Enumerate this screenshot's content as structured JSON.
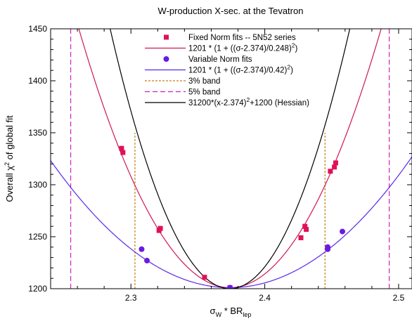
{
  "chart_data": {
    "type": "scatter",
    "title": "W-production X-sec. at the Tevatron",
    "xlabel": {
      "main": "σ",
      "sub1": "W",
      "mid": " * BR",
      "sub2": "lep"
    },
    "ylabel": {
      "pre": "Overall χ",
      "sup": "2",
      "post": " of global fit"
    },
    "xlim": [
      2.24,
      2.51
    ],
    "ylim": [
      1200,
      1450
    ],
    "xticks": [
      2.3,
      2.4,
      2.5
    ],
    "xtick_labels": [
      "2.3",
      "2.4",
      "2.5"
    ],
    "yticks": [
      1200,
      1250,
      1300,
      1350,
      1400,
      1450
    ],
    "ytick_labels": [
      "1200",
      "1250",
      "1300",
      "1350",
      "1400",
      "1450"
    ],
    "legend_position": "top-right",
    "series": [
      {
        "name": "Fixed Norm fits -- 5N52 series",
        "kind": "points",
        "marker": "square",
        "color": "#e0105a",
        "points": [
          [
            2.293,
            1335
          ],
          [
            2.294,
            1331
          ],
          [
            2.321,
            1256
          ],
          [
            2.322,
            1258
          ],
          [
            2.355,
            1211
          ],
          [
            2.374,
            1201
          ],
          [
            2.427,
            1249
          ],
          [
            2.43,
            1260
          ],
          [
            2.431,
            1257
          ],
          [
            2.449,
            1313
          ],
          [
            2.452,
            1317
          ],
          [
            2.453,
            1321
          ]
        ]
      },
      {
        "name": "1201 * (1 + ((σ-2.374)/0.248)²)",
        "name_parts": {
          "pre": "1201 * (1 + ((σ-2.374)/0.248)",
          "sup": "2",
          "post": ")"
        },
        "kind": "curve",
        "color": "#d01850",
        "a": 1201,
        "c": 2.374,
        "w": 0.248
      },
      {
        "name": "Variable Norm fits",
        "kind": "points",
        "marker": "circle",
        "color": "#6a1be0",
        "points": [
          [
            2.308,
            1238
          ],
          [
            2.312,
            1227
          ],
          [
            2.374,
            1201
          ],
          [
            2.447,
            1238
          ],
          [
            2.447,
            1240
          ],
          [
            2.458,
            1255
          ]
        ]
      },
      {
        "name": "1201 * (1 + ((σ-2.374)/0.42)²)",
        "name_parts": {
          "pre": "1201 * (1 + ((σ-2.374)/0.42)",
          "sup": "2",
          "post": ")"
        },
        "kind": "curve",
        "color": "#5a28e8",
        "a": 1201,
        "c": 2.374,
        "w": 0.42
      },
      {
        "name": "3% band",
        "kind": "vlines",
        "color": "#c08010",
        "x": [
          2.303,
          2.445
        ],
        "ytop": 1350
      },
      {
        "name": "5% band",
        "kind": "vlines",
        "color": "#d020b0",
        "x": [
          2.255,
          2.493
        ],
        "ytop": 1450
      },
      {
        "name": "31200*(x-2.374)²+1200 (Hessian)",
        "name_parts": {
          "pre": "31200*(x-2.374)",
          "sup": "2",
          "post": "+1200 (Hessian)"
        },
        "kind": "parabola",
        "color": "#000000",
        "k": 31200,
        "c": 2.374,
        "b": 1200
      }
    ]
  }
}
